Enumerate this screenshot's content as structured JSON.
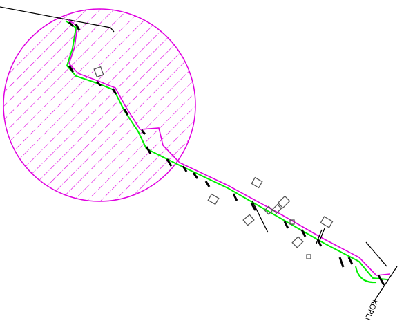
{
  "labels": {
    "place": "KOPLI"
  }
}
